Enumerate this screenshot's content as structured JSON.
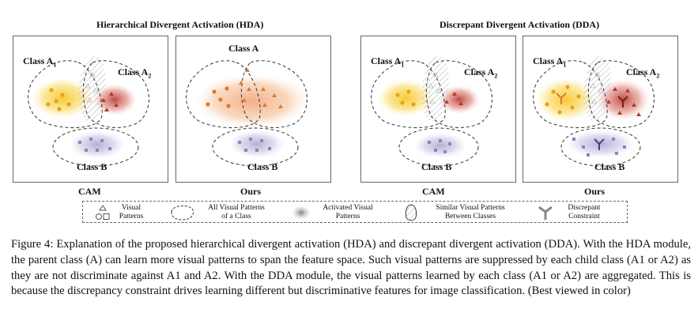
{
  "titles": {
    "hda": "Hierarchical Divergent Activation (HDA)",
    "dda": "Discrepant Divergent Activation (DDA)"
  },
  "panels": {
    "p1": {
      "classA1": "Class A",
      "classA1_sub": "1",
      "classA2": "Class A",
      "classA2_sub": "2",
      "classB": "Class B",
      "caption": "CAM"
    },
    "p2": {
      "classA": "Class A",
      "classB": "Class B",
      "caption": "Ours"
    },
    "p3": {
      "classA1": "Class A",
      "classA1_sub": "1",
      "classA2": "Class A",
      "classA2_sub": "2",
      "classB": "Class B",
      "caption": "CAM"
    },
    "p4": {
      "classA1": "Class A",
      "classA1_sub": "1",
      "classA2": "Class A",
      "classA2_sub": "2",
      "classB": "Class B",
      "caption": "Ours"
    }
  },
  "legend": {
    "visual_patterns": "Visual\nPatterns",
    "all_patterns": "All Visual Patterns\nof a Class",
    "activated": "Activated Visual\nPatterns",
    "similar": "Similar Visual Patterns\nBetween Classes",
    "constraint": "Discrepant\nConstraint"
  },
  "caption": "Figure 4: Explanation of the proposed hierarchical divergent activation (HDA) and discrepant divergent activation (DDA). With the HDA module, the parent class (A) can learn more visual patterns to span the feature space. Such visual patterns are suppressed by each child class (A1 or A2) as they are not discriminate against A1 and A2. With the DDA module, the visual patterns learned by each class (A1 or A2) are aggregated. This is because the discrepancy constraint drives learning different but discriminative features for image classification. (Best viewed in color)",
  "colors": {
    "yellow": "#f2c12e",
    "red": "#b83a2a",
    "orange": "#e07a3a",
    "purple": "#8c84b8",
    "grey": "#c8c8d0"
  }
}
